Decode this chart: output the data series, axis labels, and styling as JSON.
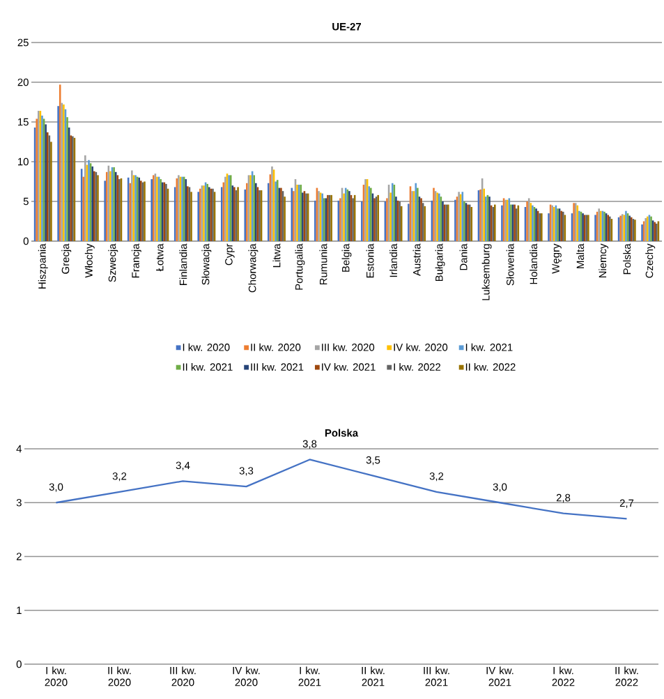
{
  "chart_data": [
    {
      "type": "bar",
      "title": "UE-27",
      "categories": [
        "Hiszpania",
        "Grecja",
        "Włochy",
        "Szwecja",
        "Francja",
        "Łotwa",
        "Finlandia",
        "Słowacja",
        "Cypr",
        "Chorwacja",
        "Litwa",
        "Portugalia",
        "Rumunia",
        "Belgia",
        "Estonia",
        "Irlandia",
        "Austria",
        "Bułgaria",
        "Dania",
        "Luksemburg",
        "Słowenia",
        "Holandia",
        "Węgry",
        "Malta",
        "Niemcy",
        "Polska",
        "Czechy"
      ],
      "series": [
        {
          "name": "I kw. 2020",
          "color": "#4472c4",
          "values": [
            14.3,
            17.0,
            9.1,
            7.6,
            8.0,
            7.8,
            6.8,
            6.2,
            6.8,
            6.5,
            7.3,
            6.7,
            5.1,
            5.1,
            5.0,
            5.0,
            4.7,
            5.1,
            5.2,
            6.4,
            4.5,
            4.3,
            3.5,
            3.5,
            3.3,
            3.0,
            2.1
          ]
        },
        {
          "name": "II kw. 2020",
          "color": "#ed7d31",
          "values": [
            15.4,
            19.7,
            8.1,
            8.7,
            7.3,
            8.3,
            7.9,
            6.6,
            7.4,
            7.3,
            8.4,
            6.3,
            6.7,
            5.4,
            7.1,
            5.4,
            6.9,
            6.7,
            5.6,
            6.5,
            5.4,
            5.0,
            4.6,
            4.8,
            3.7,
            3.2,
            2.5
          ]
        },
        {
          "name": "III kw. 2020",
          "color": "#a5a5a5",
          "values": [
            16.4,
            17.4,
            10.8,
            9.5,
            8.9,
            8.5,
            8.3,
            7.0,
            8.1,
            8.3,
            9.4,
            7.8,
            6.3,
            6.7,
            7.8,
            7.1,
            6.3,
            6.3,
            6.2,
            7.9,
            5.2,
            5.4,
            4.5,
            4.8,
            4.1,
            3.4,
            2.9
          ]
        },
        {
          "name": "IV kw. 2020",
          "color": "#ffc000",
          "values": [
            16.4,
            17.2,
            9.6,
            8.8,
            8.3,
            8.1,
            8.1,
            7.0,
            8.5,
            8.3,
            9.0,
            7.1,
            6.1,
            6.0,
            7.8,
            6.1,
            6.3,
            6.1,
            5.9,
            6.6,
            5.2,
            4.8,
            4.3,
            4.5,
            3.8,
            3.3,
            3.1
          ]
        },
        {
          "name": "I kw. 2021",
          "color": "#5b9bd5",
          "values": [
            15.8,
            16.6,
            10.2,
            9.3,
            8.3,
            8.1,
            8.1,
            7.4,
            8.3,
            8.8,
            7.5,
            7.1,
            6.0,
            6.7,
            6.9,
            7.3,
            7.3,
            6.0,
            6.2,
            5.6,
            5.4,
            4.5,
            4.5,
            3.8,
            3.8,
            3.8,
            3.3
          ]
        },
        {
          "name": "II kw. 2021",
          "color": "#70ad47",
          "values": [
            15.4,
            15.6,
            9.8,
            9.3,
            8.1,
            7.8,
            8.1,
            7.2,
            8.3,
            8.3,
            7.7,
            7.1,
            5.4,
            6.5,
            6.7,
            7.1,
            6.7,
            5.6,
            5.0,
            5.8,
            4.6,
            4.3,
            4.1,
            3.7,
            3.7,
            3.5,
            3.1
          ]
        },
        {
          "name": "III kw. 2021",
          "color": "#264478",
          "values": [
            14.7,
            14.3,
            9.4,
            8.7,
            8.0,
            7.4,
            7.8,
            6.8,
            7.0,
            7.3,
            6.7,
            6.1,
            5.4,
            6.3,
            6.0,
            5.6,
            5.6,
            5.0,
            4.8,
            5.6,
            4.6,
            4.1,
            4.1,
            3.5,
            3.5,
            3.2,
            2.6
          ]
        },
        {
          "name": "IV kw. 2021",
          "color": "#9e480e",
          "values": [
            13.7,
            13.3,
            8.8,
            8.3,
            7.6,
            7.4,
            6.9,
            6.6,
            6.8,
            6.8,
            6.7,
            6.3,
            5.8,
            5.8,
            5.4,
            5.1,
            5.4,
            4.6,
            4.6,
            4.5,
            4.6,
            3.8,
            3.8,
            3.3,
            3.3,
            3.0,
            2.4
          ]
        },
        {
          "name": "I kw. 2022",
          "color": "#636363",
          "values": [
            13.3,
            13.2,
            8.7,
            7.8,
            7.4,
            7.2,
            6.8,
            6.6,
            6.4,
            6.4,
            6.3,
            6.0,
            5.8,
            5.4,
            5.6,
            5.0,
            4.8,
            4.6,
            4.6,
            4.3,
            4.1,
            3.5,
            3.7,
            3.3,
            3.1,
            2.8,
            2.2
          ]
        },
        {
          "name": "II kw. 2022",
          "color": "#997300",
          "values": [
            12.5,
            13.0,
            8.3,
            7.9,
            7.5,
            6.6,
            6.2,
            6.2,
            6.8,
            6.4,
            5.6,
            6.0,
            5.8,
            5.8,
            5.8,
            4.4,
            4.4,
            4.6,
            4.3,
            4.6,
            4.5,
            3.5,
            3.3,
            3.3,
            2.8,
            2.7,
            2.5
          ]
        }
      ],
      "ylim": [
        0,
        25
      ],
      "yticks": [
        0,
        5,
        10,
        15,
        20,
        25
      ],
      "grid": "y",
      "legend": "bottom"
    },
    {
      "type": "line",
      "title": "Polska",
      "categories": [
        "I kw. 2020",
        "II kw. 2020",
        "III kw. 2020",
        "IV kw. 2020",
        "I kw. 2021",
        "II kw. 2021",
        "III kw. 2021",
        "IV kw. 2021",
        "I kw. 2022",
        "II kw. 2022"
      ],
      "values": [
        3.0,
        3.2,
        3.4,
        3.3,
        3.8,
        3.5,
        3.2,
        3.0,
        2.8,
        2.7
      ],
      "value_labels": [
        "3,0",
        "3,2",
        "3,4",
        "3,3",
        "3,8",
        "3,5",
        "3,2",
        "3,0",
        "2,8",
        "2,7"
      ],
      "color": "#4472c4",
      "ylim": [
        0,
        4
      ],
      "yticks": [
        0,
        1,
        2,
        3,
        4
      ],
      "grid": "y"
    }
  ]
}
